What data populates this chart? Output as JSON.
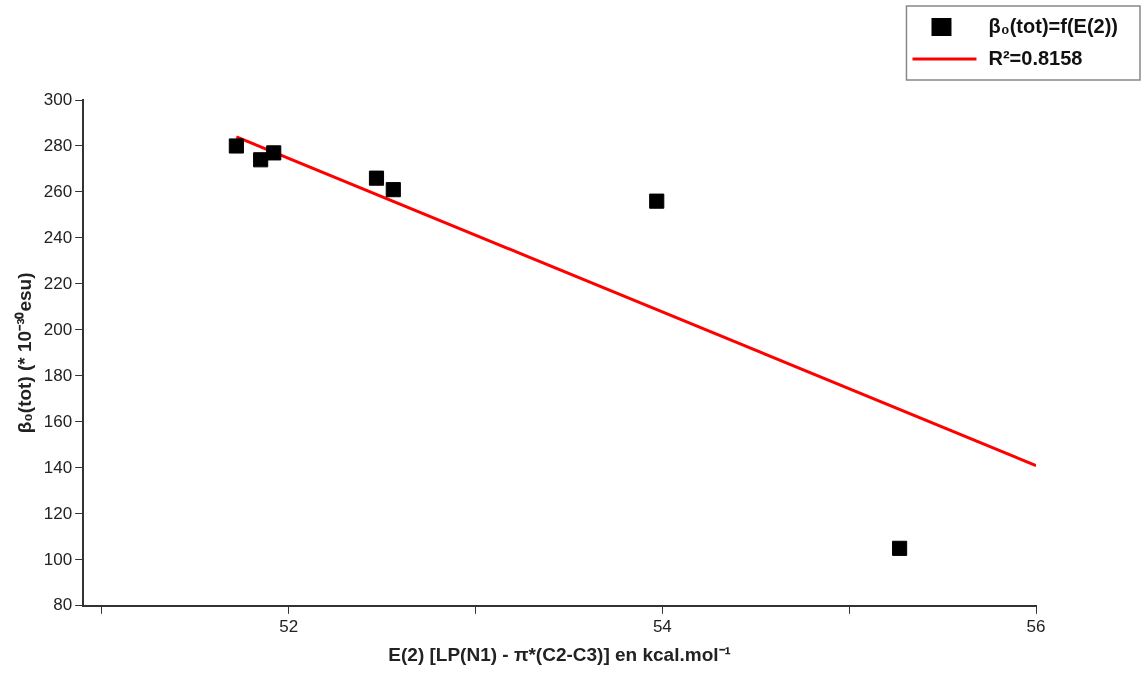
{
  "chart_data": {
    "type": "scatter",
    "xlabel": "E(2) [LP(N1) - π*(C2-C3)] en kcal.mol⁻¹",
    "ylabel": "β₀(tot) (* 10⁻³⁰esu)",
    "series": [
      {
        "name": "β₀(tot)=f(E(2))",
        "color": "#000000",
        "marker": "square",
        "x": [
          51.72,
          51.85,
          51.92,
          52.47,
          52.56,
          53.97,
          55.27
        ],
        "values": [
          280,
          274,
          277,
          266,
          261,
          256,
          105
        ]
      },
      {
        "name": "R²=0.8158",
        "type": "line",
        "color": "#ff0000",
        "marker": "none",
        "x": [
          51.72,
          56
        ],
        "values": [
          284,
          141
        ]
      }
    ],
    "xlim": [
      50.9,
      56
    ],
    "xticks": [
      {
        "value": 51,
        "label": null
      },
      52,
      {
        "value": 53,
        "label": null
      },
      54,
      {
        "value": 55,
        "label": null
      },
      56
    ],
    "ylim": [
      80,
      300
    ],
    "yticks": [
      80,
      100,
      120,
      140,
      160,
      180,
      200,
      220,
      240,
      260,
      280,
      300
    ],
    "grid": false,
    "legend": "top right"
  }
}
